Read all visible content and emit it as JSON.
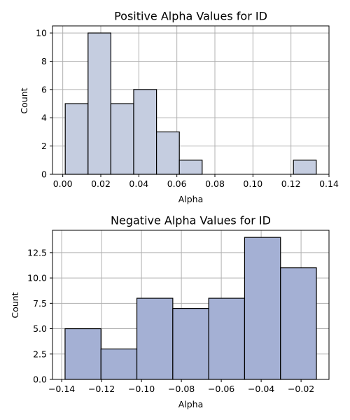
{
  "chart_data": [
    {
      "type": "histogram",
      "title": "Positive Alpha Values for ID",
      "xlabel": "Alpha",
      "ylabel": "Count",
      "bar_color": "#c5cde0",
      "edge_color": "#000000",
      "grid": true,
      "bins": [
        {
          "x0": 0.0013,
          "x1": 0.0133,
          "count": 5
        },
        {
          "x0": 0.0133,
          "x1": 0.0253,
          "count": 10
        },
        {
          "x0": 0.0253,
          "x1": 0.0373,
          "count": 5
        },
        {
          "x0": 0.0373,
          "x1": 0.0493,
          "count": 6
        },
        {
          "x0": 0.0493,
          "x1": 0.0613,
          "count": 3
        },
        {
          "x0": 0.0613,
          "x1": 0.0733,
          "count": 1
        },
        {
          "x0": 0.0733,
          "x1": 0.0853,
          "count": 0
        },
        {
          "x0": 0.0853,
          "x1": 0.0973,
          "count": 0
        },
        {
          "x0": 0.0973,
          "x1": 0.1093,
          "count": 0
        },
        {
          "x0": 0.1093,
          "x1": 0.1213,
          "count": 0
        },
        {
          "x0": 0.1213,
          "x1": 0.1333,
          "count": 1
        }
      ],
      "xlim": [
        -0.0054,
        0.14
      ],
      "ylim": [
        0,
        10.5
      ],
      "xticks": [
        0.0,
        0.02,
        0.04,
        0.06,
        0.08,
        0.1,
        0.12,
        0.14
      ],
      "xtick_labels": [
        "0.00",
        "0.02",
        "0.04",
        "0.06",
        "0.08",
        "0.10",
        "0.12",
        "0.14"
      ],
      "yticks": [
        0,
        2,
        4,
        6,
        8,
        10
      ],
      "ytick_labels": [
        "0",
        "2",
        "4",
        "6",
        "8",
        "10"
      ]
    },
    {
      "type": "histogram",
      "title": "Negative Alpha Values for ID",
      "xlabel": "Alpha",
      "ylabel": "Count",
      "bar_color": "#a4b0d4",
      "edge_color": "#000000",
      "grid": true,
      "bins": [
        {
          "x0": -0.1383,
          "x1": -0.1203,
          "count": 5
        },
        {
          "x0": -0.1203,
          "x1": -0.1023,
          "count": 3
        },
        {
          "x0": -0.1023,
          "x1": -0.0843,
          "count": 8
        },
        {
          "x0": -0.0843,
          "x1": -0.0663,
          "count": 7
        },
        {
          "x0": -0.0663,
          "x1": -0.0483,
          "count": 8
        },
        {
          "x0": -0.0483,
          "x1": -0.0303,
          "count": 14
        },
        {
          "x0": -0.0303,
          "x1": -0.0123,
          "count": 11
        }
      ],
      "xlim": [
        -0.1446,
        -0.006
      ],
      "ylim": [
        0,
        14.7
      ],
      "xticks": [
        -0.14,
        -0.12,
        -0.1,
        -0.08,
        -0.06,
        -0.04,
        -0.02
      ],
      "xtick_labels": [
        "−0.14",
        "−0.12",
        "−0.10",
        "−0.08",
        "−0.06",
        "−0.04",
        "−0.02"
      ],
      "yticks": [
        0,
        2.5,
        5,
        7.5,
        10,
        12.5
      ],
      "ytick_labels": [
        "0.0",
        "2.5",
        "5.0",
        "7.5",
        "10.0",
        "12.5"
      ]
    }
  ]
}
